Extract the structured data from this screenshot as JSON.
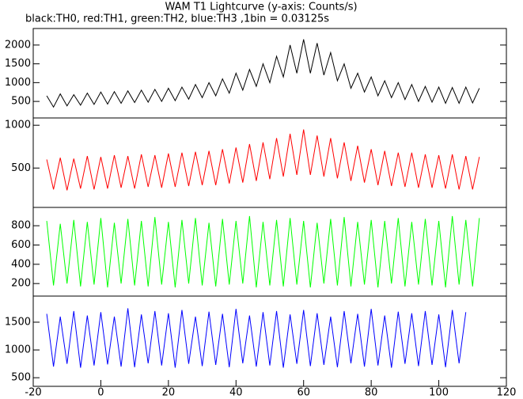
{
  "chart_data": [
    {
      "type": "line",
      "title": "WAM T1 Lightcurve (y-axis: Counts/s)",
      "subtitle": "black:TH0, red:TH1, green:TH2, blue:TH3 ,1bin = 0.03125s",
      "x": [
        -16,
        -14,
        -12,
        -10,
        -8,
        -6,
        -4,
        -2,
        0,
        2,
        4,
        6,
        8,
        10,
        12,
        14,
        16,
        18,
        20,
        22,
        24,
        26,
        28,
        30,
        32,
        34,
        36,
        38,
        40,
        42,
        44,
        46,
        48,
        50,
        52,
        54,
        56,
        58,
        60,
        62,
        64,
        66,
        68,
        70,
        72,
        74,
        76,
        78,
        80,
        82,
        84,
        86,
        88,
        90,
        92,
        94,
        96,
        98,
        100,
        102,
        104,
        106,
        108,
        110,
        112
      ],
      "ylim": [
        60,
        2440
      ],
      "yticks": [
        500,
        1000,
        1500,
        2000
      ],
      "series": [
        {
          "name": "TH0",
          "color": "#000000",
          "values": [
            650,
            350,
            700,
            380,
            680,
            400,
            720,
            420,
            750,
            430,
            760,
            450,
            780,
            470,
            800,
            480,
            820,
            500,
            850,
            520,
            880,
            560,
            950,
            600,
            1000,
            650,
            1100,
            720,
            1250,
            800,
            1350,
            900,
            1500,
            1000,
            1700,
            1150,
            2000,
            1250,
            2150,
            1250,
            2050,
            1200,
            1800,
            1050,
            1500,
            850,
            1250,
            750,
            1150,
            650,
            1050,
            600,
            1000,
            550,
            950,
            500,
            900,
            480,
            880,
            450,
            870,
            450,
            880,
            460,
            850
          ]
        }
      ]
    },
    {
      "type": "line",
      "ylim": [
        40,
        1085
      ],
      "yticks": [
        500,
        1000
      ],
      "series": [
        {
          "name": "TH1",
          "color": "#ff0000",
          "values": [
            600,
            250,
            620,
            240,
            610,
            260,
            640,
            250,
            630,
            260,
            650,
            270,
            640,
            260,
            660,
            280,
            650,
            270,
            670,
            280,
            680,
            290,
            690,
            300,
            700,
            300,
            720,
            320,
            740,
            330,
            780,
            350,
            800,
            370,
            850,
            400,
            900,
            420,
            950,
            420,
            880,
            400,
            850,
            380,
            800,
            350,
            760,
            330,
            720,
            300,
            700,
            290,
            680,
            280,
            680,
            270,
            660,
            270,
            650,
            260,
            660,
            250,
            640,
            250,
            630
          ]
        }
      ]
    },
    {
      "type": "line",
      "ylim": [
        70,
        990
      ],
      "yticks": [
        200,
        400,
        600,
        800
      ],
      "series": [
        {
          "name": "TH2",
          "color": "#00ff00",
          "values": [
            850,
            180,
            820,
            200,
            860,
            170,
            840,
            190,
            880,
            160,
            830,
            200,
            870,
            180,
            850,
            170,
            890,
            190,
            840,
            160,
            860,
            200,
            880,
            180,
            830,
            170,
            870,
            190,
            850,
            200,
            900,
            160,
            840,
            180,
            860,
            170,
            880,
            190,
            850,
            160,
            830,
            200,
            870,
            180,
            890,
            170,
            840,
            190,
            860,
            160,
            850,
            200,
            880,
            170,
            840,
            190,
            870,
            180,
            850,
            160,
            900,
            190,
            860,
            170,
            880
          ]
        }
      ]
    },
    {
      "type": "line",
      "ylim": [
        345,
        1970
      ],
      "yticks": [
        500,
        1000,
        1500
      ],
      "xlim": [
        -20,
        120
      ],
      "xticks": [
        -20,
        0,
        20,
        40,
        60,
        80,
        100,
        120
      ],
      "series": [
        {
          "name": "TH3",
          "color": "#0000ff",
          "values": [
            1650,
            700,
            1600,
            750,
            1700,
            680,
            1620,
            720,
            1680,
            740,
            1600,
            700,
            1750,
            690,
            1640,
            760,
            1700,
            720,
            1660,
            680,
            1720,
            750,
            1600,
            710,
            1690,
            730,
            1650,
            690,
            1740,
            760,
            1620,
            700,
            1680,
            720,
            1700,
            680,
            1640,
            750,
            1720,
            710,
            1660,
            730,
            1600,
            690,
            1700,
            760,
            1650,
            700,
            1740,
            720,
            1620,
            680,
            1690,
            750,
            1660,
            710,
            1700,
            730,
            1640,
            690,
            1720,
            760,
            1680
          ]
        }
      ]
    }
  ]
}
